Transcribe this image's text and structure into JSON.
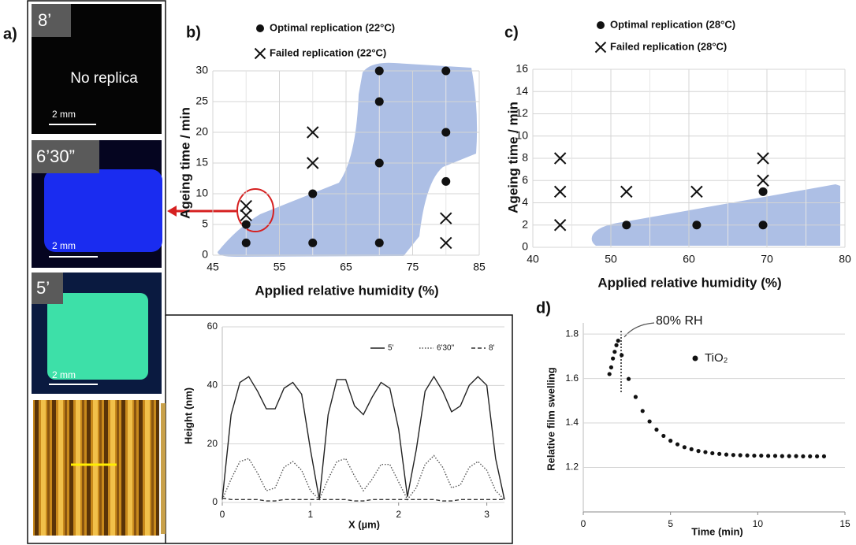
{
  "panel_a": {
    "label": "a)",
    "images": [
      {
        "time": "8’",
        "caption": "No replica",
        "scale": "2 mm"
      },
      {
        "time": "6’30”",
        "scale": "2 mm"
      },
      {
        "time": "5’",
        "scale": "2 mm"
      }
    ]
  },
  "chart_data": [
    {
      "type": "scatter",
      "panel_label": "b)",
      "xlabel": "Applied relative humidity (%)",
      "ylabel": "Ageing time / min",
      "xlim": [
        45,
        85
      ],
      "xticks": [
        45,
        55,
        65,
        75,
        85
      ],
      "ylim": [
        0,
        30
      ],
      "yticks": [
        0,
        5,
        10,
        15,
        20,
        25,
        30
      ],
      "grid": true,
      "series": [
        {
          "name": "Optimal replication (22°C)",
          "color": "#111111",
          "marker": "o",
          "x": [
            50,
            50,
            60,
            60,
            70,
            70,
            70,
            70,
            80,
            80,
            80
          ],
          "values": [
            2,
            5,
            2,
            10,
            2,
            15,
            25,
            30,
            12,
            20,
            30
          ]
        },
        {
          "name": "Failed replication (22°C)",
          "color": "#111111",
          "marker": "x",
          "x": [
            50,
            50,
            60,
            60,
            80,
            80
          ],
          "values": [
            8,
            6.5,
            15,
            20,
            2,
            6
          ]
        }
      ]
    },
    {
      "type": "scatter",
      "panel_label": "c)",
      "xlabel": "Applied relative humidity (%)",
      "ylabel": "Ageing time / min",
      "xlim": [
        40,
        80
      ],
      "xticks": [
        40,
        50,
        60,
        70,
        80
      ],
      "ylim": [
        0,
        16
      ],
      "yticks": [
        0,
        2,
        4,
        6,
        8,
        10,
        12,
        14,
        16
      ],
      "grid": true,
      "series": [
        {
          "name": "Optimal replication (28°C)",
          "color": "#111111",
          "marker": "o",
          "x": [
            52,
            61,
            69.5,
            69.5
          ],
          "values": [
            2,
            2,
            2,
            5
          ]
        },
        {
          "name": "Failed replication (28°C)",
          "color": "#111111",
          "marker": "x",
          "x": [
            43.5,
            43.5,
            43.5,
            52,
            61,
            69.5,
            69.5
          ],
          "values": [
            2,
            5,
            8,
            5,
            5,
            6,
            8
          ]
        }
      ]
    },
    {
      "type": "line",
      "xlabel": "X (µm)",
      "ylabel": "Height (nm)",
      "xlim": [
        0,
        3.2
      ],
      "xticks": [
        0,
        1,
        2,
        3
      ],
      "ylim": [
        0,
        60
      ],
      "yticks": [
        0,
        20,
        40,
        60
      ],
      "grid": true,
      "x": [
        0,
        0.1,
        0.2,
        0.3,
        0.4,
        0.5,
        0.6,
        0.7,
        0.8,
        0.9,
        1.0,
        1.1,
        1.2,
        1.3,
        1.4,
        1.5,
        1.6,
        1.7,
        1.8,
        1.9,
        2.0,
        2.1,
        2.2,
        2.3,
        2.4,
        2.5,
        2.6,
        2.7,
        2.8,
        2.9,
        3.0,
        3.1,
        3.2
      ],
      "series": [
        {
          "name": "5'",
          "color": "#222222",
          "style": "solid",
          "values": [
            1,
            30,
            41,
            43,
            38,
            32,
            32,
            39,
            41,
            37,
            18,
            1,
            30,
            42,
            42,
            33,
            30,
            36,
            41,
            39,
            25,
            2,
            18,
            38,
            43,
            38,
            31,
            33,
            40,
            43,
            40,
            15,
            1
          ]
        },
        {
          "name": "6'30\"",
          "color": "#555555",
          "style": "dotted",
          "values": [
            1,
            8,
            14,
            15,
            10,
            4,
            5,
            12,
            14,
            11,
            4,
            1,
            8,
            14,
            15,
            9,
            4,
            8,
            13,
            13,
            7,
            1,
            5,
            13,
            16,
            12,
            5,
            6,
            12,
            14,
            11,
            4,
            1
          ]
        },
        {
          "name": "8'",
          "color": "#333333",
          "style": "dashed",
          "values": [
            1.5,
            1,
            1,
            1,
            1,
            0.5,
            0.5,
            1,
            1,
            1,
            1,
            1,
            1,
            1,
            1,
            0.5,
            0.5,
            1,
            1,
            1,
            1,
            1,
            1,
            1,
            1,
            0.5,
            0.5,
            1,
            1,
            1,
            1,
            1,
            1
          ]
        }
      ]
    },
    {
      "type": "scatter",
      "panel_label": "d)",
      "xlabel": "Time (min)",
      "ylabel": "Relative film swelling",
      "annotation": "80% RH",
      "xlim": [
        0,
        15
      ],
      "xticks": [
        0,
        5,
        10,
        15
      ],
      "ylim": [
        1.0,
        1.85
      ],
      "yticks": [
        1.2,
        1.4,
        1.6,
        1.8
      ],
      "grid": true,
      "series": [
        {
          "name": "TiO₂",
          "color": "#111111",
          "marker": "o",
          "x": [
            1.5,
            1.6,
            1.7,
            1.8,
            1.9,
            2.0,
            2.2,
            2.6,
            3.0,
            3.4,
            3.8,
            4.2,
            4.6,
            5.0,
            5.4,
            5.8,
            6.2,
            6.6,
            7.0,
            7.4,
            7.8,
            8.2,
            8.6,
            9.0,
            9.4,
            9.8,
            10.2,
            10.6,
            11.0,
            11.4,
            11.8,
            12.2,
            12.6,
            13.0,
            13.4,
            13.8
          ],
          "values": [
            1.62,
            1.65,
            1.69,
            1.72,
            1.75,
            1.77,
            1.705,
            1.598,
            1.517,
            1.454,
            1.407,
            1.37,
            1.342,
            1.32,
            1.304,
            1.291,
            1.282,
            1.274,
            1.269,
            1.264,
            1.261,
            1.258,
            1.256,
            1.255,
            1.254,
            1.253,
            1.253,
            1.252,
            1.252,
            1.251,
            1.251,
            1.251,
            1.25,
            1.25,
            1.25,
            1.25
          ]
        }
      ]
    }
  ]
}
